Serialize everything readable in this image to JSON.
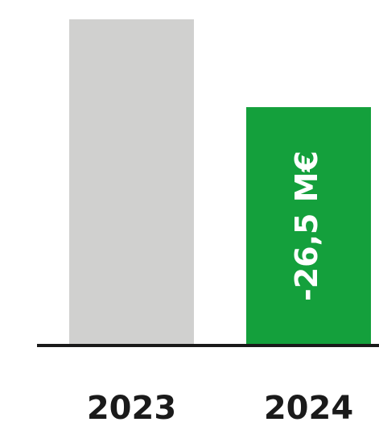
{
  "chart_data": {
    "type": "bar",
    "categories": [
      "2023",
      "2024"
    ],
    "values": [
      98.2,
      71.7
    ],
    "colors": [
      "#d0d0cf",
      "#14a03c"
    ],
    "ylim": [
      0,
      100
    ],
    "annotations": [
      {
        "text": "-26,5 M€",
        "category": "2024"
      }
    ]
  }
}
